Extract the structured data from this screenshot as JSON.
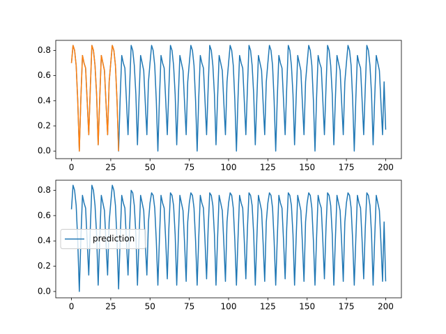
{
  "chart_data": [
    {
      "type": "line",
      "x": [
        0,
        1,
        2,
        3,
        4,
        5,
        6,
        7,
        8,
        9,
        10,
        11,
        12,
        13,
        14,
        15,
        16,
        17,
        18,
        19,
        20,
        21,
        22,
        23,
        24,
        25,
        26,
        27,
        28,
        29,
        30,
        31,
        32,
        33,
        34,
        35,
        36,
        37,
        38,
        39,
        40,
        41,
        42,
        43,
        44,
        45,
        46,
        47,
        48,
        49,
        50,
        51,
        52,
        53,
        54,
        55,
        56,
        57,
        58,
        59,
        60,
        61,
        62,
        63,
        64,
        65,
        66,
        67,
        68,
        69,
        70,
        71,
        72,
        73,
        74,
        75,
        76,
        77,
        78,
        79,
        80,
        81,
        82,
        83,
        84,
        85,
        86,
        87,
        88,
        89,
        90,
        91,
        92,
        93,
        94,
        95,
        96,
        97,
        98,
        99,
        100,
        101,
        102,
        103,
        104,
        105,
        106,
        107,
        108,
        109,
        110,
        111,
        112,
        113,
        114,
        115,
        116,
        117,
        118,
        119,
        120,
        121,
        122,
        123,
        124,
        125,
        126,
        127,
        128,
        129,
        130,
        131,
        132,
        133,
        134,
        135,
        136,
        137,
        138,
        139,
        140,
        141,
        142,
        143,
        144,
        145,
        146,
        147,
        148,
        149,
        150,
        151,
        152,
        153,
        154,
        155,
        156,
        157,
        158,
        159,
        160,
        161,
        162,
        163,
        164,
        165,
        166,
        167,
        168,
        169,
        170,
        171,
        172,
        173,
        174,
        175,
        176,
        177,
        178,
        179,
        180,
        181,
        182,
        183,
        184,
        185,
        186,
        187,
        188,
        189,
        190,
        191,
        192,
        193,
        194,
        195,
        196,
        197,
        198,
        199,
        200
      ],
      "series": [
        {
          "color": "#1f77b4",
          "values": [
            0.7,
            0.84,
            0.8,
            0.68,
            0.4,
            0.0,
            0.42,
            0.76,
            0.7,
            0.66,
            0.4,
            0.13,
            0.5,
            0.84,
            0.8,
            0.68,
            0.45,
            0.05,
            0.42,
            0.76,
            0.7,
            0.64,
            0.38,
            0.13,
            0.55,
            0.7,
            0.84,
            0.8,
            0.68,
            0.4,
            0.0,
            0.42,
            0.76,
            0.7,
            0.66,
            0.4,
            0.13,
            0.5,
            0.84,
            0.8,
            0.68,
            0.45,
            0.05,
            0.42,
            0.76,
            0.7,
            0.64,
            0.38,
            0.13,
            0.55,
            0.7,
            0.84,
            0.8,
            0.68,
            0.4,
            0.0,
            0.42,
            0.76,
            0.7,
            0.66,
            0.4,
            0.13,
            0.5,
            0.84,
            0.8,
            0.68,
            0.45,
            0.05,
            0.42,
            0.76,
            0.7,
            0.64,
            0.38,
            0.13,
            0.55,
            0.7,
            0.84,
            0.8,
            0.68,
            0.4,
            0.0,
            0.42,
            0.76,
            0.7,
            0.66,
            0.4,
            0.13,
            0.5,
            0.84,
            0.8,
            0.68,
            0.45,
            0.05,
            0.42,
            0.76,
            0.7,
            0.64,
            0.38,
            0.13,
            0.55,
            0.7,
            0.84,
            0.8,
            0.68,
            0.4,
            0.0,
            0.42,
            0.76,
            0.7,
            0.66,
            0.4,
            0.13,
            0.5,
            0.84,
            0.8,
            0.68,
            0.45,
            0.05,
            0.42,
            0.76,
            0.7,
            0.64,
            0.38,
            0.13,
            0.55,
            0.7,
            0.84,
            0.8,
            0.68,
            0.4,
            0.0,
            0.42,
            0.76,
            0.7,
            0.66,
            0.4,
            0.13,
            0.5,
            0.84,
            0.8,
            0.68,
            0.45,
            0.05,
            0.42,
            0.76,
            0.7,
            0.64,
            0.38,
            0.13,
            0.55,
            0.7,
            0.84,
            0.8,
            0.68,
            0.4,
            0.0,
            0.42,
            0.76,
            0.7,
            0.66,
            0.4,
            0.13,
            0.5,
            0.84,
            0.8,
            0.68,
            0.45,
            0.05,
            0.42,
            0.76,
            0.7,
            0.64,
            0.38,
            0.13,
            0.55,
            0.7,
            0.84,
            0.8,
            0.68,
            0.4,
            0.0,
            0.42,
            0.76,
            0.7,
            0.66,
            0.4,
            0.13,
            0.5,
            0.84,
            0.8,
            0.68,
            0.45,
            0.05,
            0.42,
            0.76,
            0.7,
            0.64,
            0.38,
            0.13,
            0.55,
            0.17
          ]
        },
        {
          "color": "#ff7f0e",
          "x": [
            0,
            1,
            2,
            3,
            4,
            5,
            6,
            7,
            8,
            9,
            10,
            11,
            12,
            13,
            14,
            15,
            16,
            17,
            18,
            19,
            20,
            21,
            22,
            23,
            24,
            25,
            26,
            27,
            28,
            29,
            30
          ],
          "values": [
            0.7,
            0.84,
            0.8,
            0.68,
            0.4,
            0.0,
            0.42,
            0.76,
            0.7,
            0.66,
            0.4,
            0.13,
            0.5,
            0.84,
            0.8,
            0.68,
            0.45,
            0.05,
            0.42,
            0.76,
            0.7,
            0.64,
            0.38,
            0.13,
            0.55,
            0.7,
            0.84,
            0.8,
            0.68,
            0.4,
            0.0
          ]
        }
      ],
      "xlim": [
        -10,
        210
      ],
      "xticks": [
        0,
        25,
        50,
        75,
        100,
        125,
        150,
        175,
        200
      ],
      "ylim": [
        -0.06,
        0.88
      ],
      "yticks": [
        {
          "value": 0,
          "label": "0.0"
        },
        0.2,
        0.4,
        0.6,
        0.8
      ]
    },
    {
      "type": "line",
      "x": [
        0,
        1,
        2,
        3,
        4,
        5,
        6,
        7,
        8,
        9,
        10,
        11,
        12,
        13,
        14,
        15,
        16,
        17,
        18,
        19,
        20,
        21,
        22,
        23,
        24,
        25,
        26,
        27,
        28,
        29,
        30,
        31,
        32,
        33,
        34,
        35,
        36,
        37,
        38,
        39,
        40,
        41,
        42,
        43,
        44,
        45,
        46,
        47,
        48,
        49,
        50,
        51,
        52,
        53,
        54,
        55,
        56,
        57,
        58,
        59,
        60,
        61,
        62,
        63,
        64,
        65,
        66,
        67,
        68,
        69,
        70,
        71,
        72,
        73,
        74,
        75,
        76,
        77,
        78,
        79,
        80,
        81,
        82,
        83,
        84,
        85,
        86,
        87,
        88,
        89,
        90,
        91,
        92,
        93,
        94,
        95,
        96,
        97,
        98,
        99,
        100,
        101,
        102,
        103,
        104,
        105,
        106,
        107,
        108,
        109,
        110,
        111,
        112,
        113,
        114,
        115,
        116,
        117,
        118,
        119,
        120,
        121,
        122,
        123,
        124,
        125,
        126,
        127,
        128,
        129,
        130,
        131,
        132,
        133,
        134,
        135,
        136,
        137,
        138,
        139,
        140,
        141,
        142,
        143,
        144,
        145,
        146,
        147,
        148,
        149,
        150,
        151,
        152,
        153,
        154,
        155,
        156,
        157,
        158,
        159,
        160,
        161,
        162,
        163,
        164,
        165,
        166,
        167,
        168,
        169,
        170,
        171,
        172,
        173,
        174,
        175,
        176,
        177,
        178,
        179,
        180,
        181,
        182,
        183,
        184,
        185,
        186,
        187,
        188,
        189,
        190,
        191,
        192,
        193,
        194,
        195,
        196,
        197,
        198,
        199,
        200
      ],
      "series": [
        {
          "name": "prediction",
          "color": "#1f77b4",
          "values": [
            0.65,
            0.84,
            0.8,
            0.68,
            0.4,
            0.0,
            0.42,
            0.76,
            0.7,
            0.66,
            0.4,
            0.13,
            0.5,
            0.84,
            0.8,
            0.68,
            0.45,
            0.05,
            0.42,
            0.76,
            0.7,
            0.64,
            0.38,
            0.13,
            0.55,
            0.7,
            0.84,
            0.8,
            0.68,
            0.4,
            0.02,
            0.42,
            0.76,
            0.7,
            0.66,
            0.4,
            0.13,
            0.5,
            0.8,
            0.78,
            0.68,
            0.45,
            0.05,
            0.42,
            0.76,
            0.7,
            0.64,
            0.38,
            0.13,
            0.55,
            0.7,
            0.78,
            0.76,
            0.66,
            0.4,
            0.05,
            0.42,
            0.76,
            0.7,
            0.66,
            0.4,
            0.1,
            0.5,
            0.78,
            0.76,
            0.68,
            0.45,
            0.05,
            0.42,
            0.76,
            0.7,
            0.64,
            0.38,
            0.08,
            0.55,
            0.7,
            0.78,
            0.76,
            0.66,
            0.4,
            0.05,
            0.42,
            0.76,
            0.7,
            0.66,
            0.4,
            0.1,
            0.5,
            0.78,
            0.76,
            0.68,
            0.45,
            0.05,
            0.42,
            0.76,
            0.7,
            0.64,
            0.38,
            0.08,
            0.55,
            0.7,
            0.78,
            0.76,
            0.66,
            0.4,
            0.05,
            0.42,
            0.76,
            0.7,
            0.66,
            0.4,
            0.1,
            0.5,
            0.78,
            0.76,
            0.68,
            0.45,
            0.05,
            0.42,
            0.76,
            0.7,
            0.64,
            0.38,
            0.08,
            0.55,
            0.7,
            0.78,
            0.76,
            0.66,
            0.4,
            0.05,
            0.42,
            0.76,
            0.7,
            0.66,
            0.4,
            0.1,
            0.5,
            0.78,
            0.76,
            0.68,
            0.45,
            0.05,
            0.42,
            0.76,
            0.7,
            0.64,
            0.38,
            0.08,
            0.55,
            0.7,
            0.78,
            0.76,
            0.66,
            0.4,
            0.05,
            0.42,
            0.76,
            0.7,
            0.66,
            0.4,
            0.1,
            0.5,
            0.78,
            0.76,
            0.68,
            0.45,
            0.05,
            0.42,
            0.76,
            0.7,
            0.64,
            0.38,
            0.08,
            0.55,
            0.7,
            0.78,
            0.76,
            0.66,
            0.4,
            0.05,
            0.42,
            0.76,
            0.7,
            0.66,
            0.4,
            0.1,
            0.5,
            0.78,
            0.76,
            0.68,
            0.45,
            0.05,
            0.42,
            0.76,
            0.7,
            0.64,
            0.38,
            0.08,
            0.55,
            0.08
          ]
        }
      ],
      "xlim": [
        -10,
        210
      ],
      "xticks": [
        0,
        25,
        50,
        75,
        100,
        125,
        150,
        175,
        200
      ],
      "ylim": [
        -0.05,
        0.88
      ],
      "yticks": [
        {
          "value": 0,
          "label": "0.0"
        },
        0.2,
        0.4,
        0.6,
        0.8
      ],
      "legend": "center left"
    }
  ]
}
